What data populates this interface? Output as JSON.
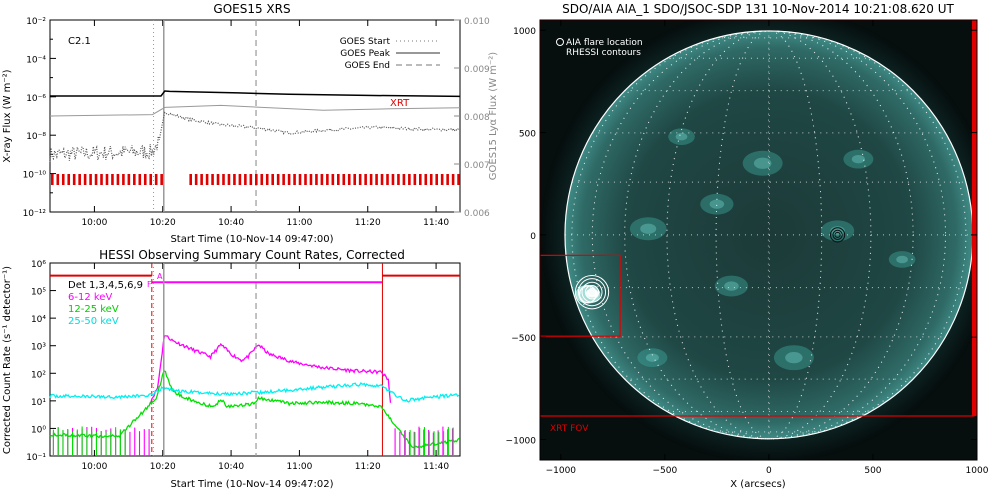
{
  "chart_data": [
    {
      "type": "line",
      "title": "GOES15 XRS",
      "xlabel": "Start Time (10-Nov-14 09:47:00)",
      "ylabel": "X-ray Flux (W m⁻²)",
      "y2label": "GOES15 Lyα Flux (W m⁻²)",
      "y_scale": "log",
      "ylim": [
        1e-12,
        0.01
      ],
      "yticks": [
        "10⁻²",
        "10⁻⁴",
        "10⁻⁶",
        "10⁻⁸",
        "10⁻¹⁰",
        "10⁻¹²"
      ],
      "y2lim": [
        0.006,
        0.01
      ],
      "y2ticks": [
        "0.010",
        "0.009",
        "0.008",
        "0.007",
        "0.006"
      ],
      "xticks": [
        "10:00",
        "10:20",
        "10:40",
        "11:00",
        "11:20",
        "11:40"
      ],
      "xlim_minutes": [
        0,
        120
      ],
      "annotation": "C2.1",
      "legend": {
        "placement": "top-right",
        "entries": [
          "GOES Start",
          "GOES Peak",
          "GOES End"
        ]
      },
      "event_lines_minutes": {
        "start": 30.3,
        "peak": 33.3,
        "end": 60.3
      },
      "xrt_label": "XRT",
      "xrt_bar_segments_minutes": [
        [
          0,
          33.5
        ],
        [
          40.5,
          120
        ]
      ],
      "series": [
        {
          "name": "",
          "color": "#000000",
          "style": "solid",
          "points": [
            [
              0,
              1.1e-06
            ],
            [
              32.5,
              1.1e-06
            ],
            [
              33.6,
              2e-06
            ],
            [
              35,
              1.9e-06
            ],
            [
              55,
              1.6e-06
            ],
            [
              70,
              1.35e-06
            ],
            [
              90,
              1.2e-06
            ],
            [
              120,
              1.05e-06
            ]
          ]
        },
        {
          "name": "",
          "color": "#555555",
          "style": "dotted",
          "points": [
            [
              0,
              1e-09
            ],
            [
              30,
              1.4e-09
            ],
            [
              32,
              5e-09
            ],
            [
              33.6,
              1.6e-07
            ],
            [
              40,
              7e-08
            ],
            [
              50,
              3.5e-08
            ],
            [
              60,
              2.5e-08
            ],
            [
              70,
              1.3e-08
            ],
            [
              80,
              1.8e-08
            ],
            [
              95,
              2.6e-08
            ],
            [
              110,
              2e-08
            ],
            [
              120,
              1.9e-08
            ]
          ]
        },
        {
          "name": "",
          "color": "#999999",
          "style": "solid",
          "axis": "y2",
          "points": [
            [
              0,
              0.008
            ],
            [
              30,
              0.00803
            ],
            [
              33.6,
              0.00818
            ],
            [
              50,
              0.00822
            ],
            [
              80,
              0.00812
            ],
            [
              100,
              0.00815
            ],
            [
              120,
              0.00817
            ]
          ]
        }
      ]
    },
    {
      "type": "line",
      "title": "HESSI Observing Summary Count Rates, Corrected",
      "xlabel": "Start Time (10-Nov-14 09:47:02)",
      "ylabel": "Corrected Count Rate (s⁻¹ detector⁻¹)",
      "y_scale": "log",
      "ylim": [
        0.1,
        1000000
      ],
      "yticks": [
        "10⁶",
        "10⁵",
        "10⁴",
        "10³",
        "10²",
        "10¹",
        "10⁰",
        "10⁻¹"
      ],
      "xticks": [
        "10:00",
        "10:20",
        "10:40",
        "11:00",
        "11:20",
        "11:40"
      ],
      "xlim_minutes": [
        0,
        120
      ],
      "legend": {
        "placement": "top-left",
        "header": "Det 1,3,4,5,6,9",
        "entries": [
          "6-12 keV",
          "12-25 keV",
          "25-50 keV"
        ]
      },
      "event_lines_minutes": {
        "start": 30.3,
        "peak": 33.3,
        "end": 60.3
      },
      "flag_labels": {
        "f": "F",
        "a": "A"
      },
      "series": [
        {
          "name": "6-12 keV",
          "color": "#ff00ff",
          "points": [
            [
              29.5,
              10
            ],
            [
              31.5,
              30
            ],
            [
              33.5,
              2500
            ],
            [
              36,
              1500
            ],
            [
              42,
              700
            ],
            [
              47,
              400
            ],
            [
              50,
              1100
            ],
            [
              53,
              500
            ],
            [
              56,
              300
            ],
            [
              58,
              400
            ],
            [
              61,
              1100
            ],
            [
              64,
              500
            ],
            [
              72,
              240
            ],
            [
              80,
              160
            ],
            [
              90,
              120
            ],
            [
              97,
              110
            ],
            [
              99,
              60
            ],
            [
              100,
              3
            ]
          ]
        },
        {
          "name": "12-25 keV",
          "color": "#00e000",
          "points": [
            [
              0,
              0.6
            ],
            [
              20,
              0.5
            ],
            [
              31,
              12
            ],
            [
              33.5,
              130
            ],
            [
              36,
              20
            ],
            [
              44,
              8
            ],
            [
              48,
              6
            ],
            [
              50,
              12
            ],
            [
              52,
              6
            ],
            [
              60,
              8
            ],
            [
              61,
              13
            ],
            [
              70,
              8
            ],
            [
              80,
              9
            ],
            [
              90,
              8
            ],
            [
              97,
              6
            ],
            [
              100,
              2
            ],
            [
              106,
              0.2
            ],
            [
              120,
              0.4
            ]
          ]
        },
        {
          "name": "25-50 keV",
          "color": "#00f0f0",
          "points": [
            [
              0,
              15
            ],
            [
              20,
              14
            ],
            [
              30,
              16
            ],
            [
              33,
              30
            ],
            [
              38,
              22
            ],
            [
              50,
              18
            ],
            [
              62,
              20
            ],
            [
              75,
              28
            ],
            [
              85,
              35
            ],
            [
              92,
              40
            ],
            [
              97,
              35
            ],
            [
              100,
              20
            ],
            [
              104,
              10
            ],
            [
              110,
              13
            ],
            [
              120,
              17
            ]
          ]
        }
      ],
      "attenuator_state_minutes": [
        [
          29.8,
          97.3
        ]
      ]
    },
    {
      "type": "heatmap",
      "title": "SDO/AIA AIA_1 SDO/JSOC-SDP 131 10-Nov-2014 10:21:08.620 UT",
      "xlabel": "X (arcsecs)",
      "ylabel": "",
      "xlim": [
        -1100,
        1000
      ],
      "ylim": [
        -1100,
        1050
      ],
      "xticks": [
        "−1000",
        "−500",
        "0",
        "500",
        "1000"
      ],
      "yticks": [
        "1000",
        "500",
        "0",
        "−500",
        "−1000"
      ],
      "legend": {
        "placement": "top-left",
        "entries": [
          "AIA flare location",
          "RHESSI contours"
        ]
      },
      "solar_disk": {
        "center": [
          0,
          0
        ],
        "radius_arcsec": 980
      },
      "flare_location_arcsec": [
        -870,
        -290
      ],
      "rhessi_contours_arcsec": {
        "center": [
          -850,
          -280
        ],
        "radii": [
          18,
          32,
          48,
          65,
          80
        ]
      },
      "weak_contour_arcsec": {
        "center": [
          330,
          0
        ],
        "radii": [
          12,
          22,
          34
        ]
      },
      "fov_boxes": [
        {
          "label": "",
          "x": [
            -1100,
            -715
          ],
          "y": [
            -495,
            -100
          ]
        },
        {
          "label": "XRT FOV",
          "x": [
            -1100,
            985
          ],
          "y": [
            -885,
            1050
          ]
        }
      ]
    }
  ]
}
